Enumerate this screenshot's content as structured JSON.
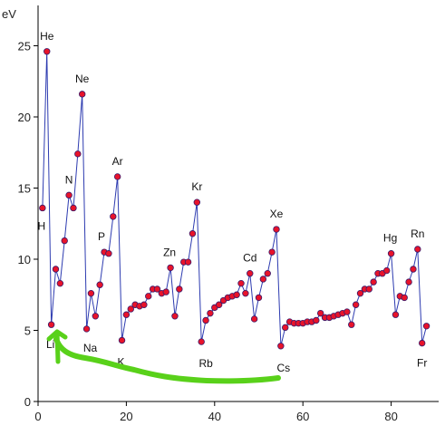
{
  "colors": {
    "line": "#2d3bb0",
    "marker_fill": "#e8132a",
    "marker_edge": "#3a1a6a",
    "axis": "#000000",
    "annotation": "#59d11a"
  },
  "chart_data": {
    "type": "scatter",
    "ylabel": "eV",
    "xlabel": "",
    "title": "",
    "xlim": [
      0,
      90
    ],
    "ylim": [
      0,
      26
    ],
    "grid": false,
    "x_ticks": [
      0,
      20,
      40,
      60,
      80
    ],
    "y_ticks": [
      0,
      5,
      10,
      15,
      20,
      25
    ],
    "x_tick_labels": [
      "0",
      "20",
      "40",
      "60",
      "80"
    ],
    "y_tick_labels": [
      "0",
      "5",
      "10",
      "15",
      "20",
      "25"
    ],
    "series": [
      {
        "x": [
          1,
          2,
          3,
          4,
          5,
          6,
          7,
          8,
          9,
          10,
          11,
          12,
          13,
          14,
          15,
          16,
          17,
          18,
          19,
          20,
          21,
          22,
          23,
          24,
          25,
          26,
          27,
          28,
          29,
          30,
          31,
          32,
          33,
          34,
          35,
          36,
          37,
          38,
          39,
          40,
          41,
          42,
          43,
          44,
          45,
          46,
          47,
          48,
          49,
          50,
          51,
          52,
          53,
          54,
          55,
          56,
          57,
          58,
          59,
          60,
          61,
          62,
          63,
          64,
          65,
          66,
          67,
          68,
          69,
          70,
          71,
          72,
          73,
          74,
          75,
          76,
          77,
          78,
          79,
          80,
          81,
          82,
          83,
          84,
          85,
          86,
          87,
          88
        ],
        "y": [
          13.6,
          24.6,
          5.4,
          9.3,
          8.3,
          11.3,
          14.5,
          13.6,
          17.4,
          21.6,
          5.1,
          7.6,
          6.0,
          8.2,
          10.5,
          10.4,
          13.0,
          15.8,
          4.3,
          6.1,
          6.5,
          6.8,
          6.7,
          6.8,
          7.4,
          7.9,
          7.9,
          7.6,
          7.7,
          9.4,
          6.0,
          7.9,
          9.8,
          9.8,
          11.8,
          14.0,
          4.2,
          5.7,
          6.2,
          6.6,
          6.8,
          7.1,
          7.3,
          7.4,
          7.5,
          8.3,
          7.6,
          9.0,
          5.8,
          7.3,
          8.6,
          9.0,
          10.5,
          12.1,
          3.9,
          5.2,
          5.6,
          5.5,
          5.5,
          5.5,
          5.6,
          5.6,
          5.7,
          6.2,
          5.9,
          5.9,
          6.0,
          6.1,
          6.2,
          6.3,
          5.4,
          6.8,
          7.6,
          7.9,
          7.9,
          8.4,
          9.0,
          9.0,
          9.2,
          10.4,
          6.1,
          7.4,
          7.3,
          8.4,
          9.3,
          10.7,
          4.1,
          5.3
        ]
      }
    ],
    "annotations": [
      "He",
      "Ne",
      "N",
      "H",
      "Ar",
      "P",
      "Kr",
      "Zn",
      "Xe",
      "Cd",
      "Hg",
      "Rn",
      "Li",
      "Na",
      "K",
      "Rb",
      "Cs",
      "Fr"
    ]
  }
}
